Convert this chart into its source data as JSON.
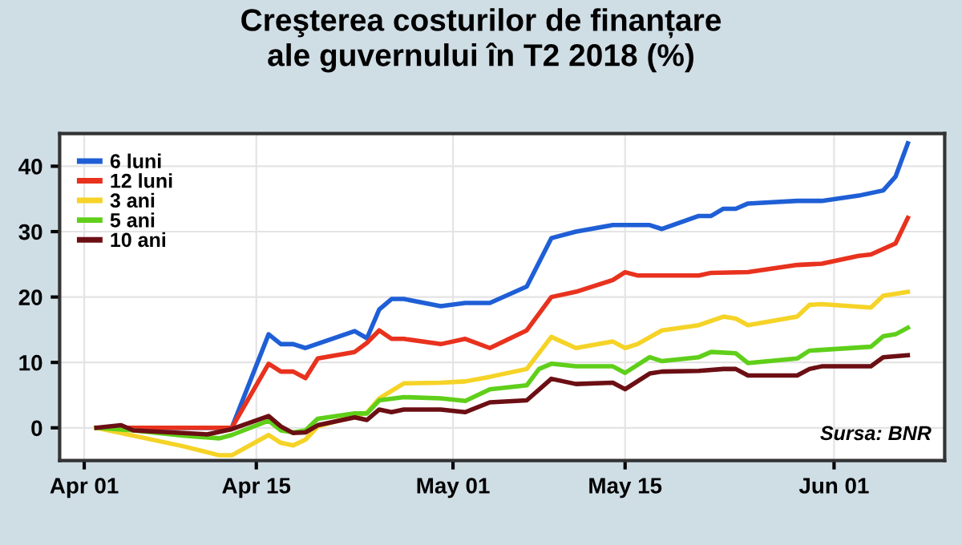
{
  "chart_data": {
    "type": "line",
    "title": "Creşterea costurilor de finanțare\nale guvernului în T2 2018 (%)",
    "xlim": [
      "2018-03-30",
      "2018-06-10"
    ],
    "xticks": [
      {
        "value": "2018-04-01",
        "label": "Apr 01"
      },
      {
        "value": "2018-04-15",
        "label": "Apr 15"
      },
      {
        "value": "2018-05-01",
        "label": "May 01"
      },
      {
        "value": "2018-05-15",
        "label": "May 15"
      },
      {
        "value": "2018-06-01",
        "label": "Jun 01"
      }
    ],
    "ylim": [
      -5,
      45
    ],
    "yticks": [
      0,
      10,
      20,
      30,
      40
    ],
    "grid": true,
    "legend": "top left",
    "line_style": "solid",
    "marker": "none",
    "annotations": [
      "Sursa: BNR"
    ],
    "series": [
      {
        "name": "6 luni",
        "color": "#1f5fd6",
        "x": [
          "2018-04-02",
          "2018-04-13",
          "2018-04-16",
          "2018-04-17",
          "2018-04-18",
          "2018-04-19",
          "2018-04-23",
          "2018-04-24",
          "2018-04-25",
          "2018-04-26",
          "2018-04-27",
          "2018-04-30",
          "2018-05-02",
          "2018-05-04",
          "2018-05-07",
          "2018-05-09",
          "2018-05-11",
          "2018-05-14",
          "2018-05-15",
          "2018-05-17",
          "2018-05-18",
          "2018-05-21",
          "2018-05-22",
          "2018-05-23",
          "2018-05-24",
          "2018-05-25",
          "2018-05-29",
          "2018-05-31",
          "2018-06-03",
          "2018-06-05",
          "2018-06-06",
          "2018-06-07"
        ],
        "values": [
          0,
          0,
          14.3,
          12.8,
          12.8,
          12.2,
          14.8,
          13.7,
          18.1,
          19.7,
          19.7,
          18.6,
          19.1,
          19.1,
          21.6,
          29,
          30,
          31,
          31,
          31,
          30.4,
          32.4,
          32.4,
          33.5,
          33.5,
          34.3,
          34.7,
          34.7,
          35.5,
          36.3,
          38.4,
          43.5
        ]
      },
      {
        "name": "12 luni",
        "color": "#e8321e",
        "x": [
          "2018-04-02",
          "2018-04-13",
          "2018-04-16",
          "2018-04-17",
          "2018-04-18",
          "2018-04-19",
          "2018-04-20",
          "2018-04-23",
          "2018-04-24",
          "2018-04-25",
          "2018-04-26",
          "2018-04-27",
          "2018-04-30",
          "2018-05-02",
          "2018-05-04",
          "2018-05-07",
          "2018-05-09",
          "2018-05-11",
          "2018-05-14",
          "2018-05-15",
          "2018-05-16",
          "2018-05-21",
          "2018-05-22",
          "2018-05-25",
          "2018-05-29",
          "2018-05-31",
          "2018-06-03",
          "2018-06-04",
          "2018-06-06",
          "2018-06-07"
        ],
        "values": [
          0,
          0,
          9.8,
          8.6,
          8.6,
          7.6,
          10.6,
          11.6,
          13,
          14.9,
          13.6,
          13.6,
          12.8,
          13.6,
          12.2,
          14.9,
          20,
          20.8,
          22.6,
          23.8,
          23.3,
          23.3,
          23.7,
          23.8,
          24.9,
          25.1,
          26.3,
          26.5,
          28.2,
          32.1
        ]
      },
      {
        "name": "3 ani",
        "color": "#f5d327",
        "x": [
          "2018-04-02",
          "2018-04-05",
          "2018-04-09",
          "2018-04-12",
          "2018-04-13",
          "2018-04-16",
          "2018-04-17",
          "2018-04-18",
          "2018-04-19",
          "2018-04-20",
          "2018-04-23",
          "2018-04-24",
          "2018-04-25",
          "2018-04-27",
          "2018-04-30",
          "2018-05-02",
          "2018-05-04",
          "2018-05-07",
          "2018-05-09",
          "2018-05-11",
          "2018-05-14",
          "2018-05-15",
          "2018-05-16",
          "2018-05-18",
          "2018-05-21",
          "2018-05-23",
          "2018-05-24",
          "2018-05-25",
          "2018-05-29",
          "2018-05-30",
          "2018-05-31",
          "2018-06-04",
          "2018-06-05",
          "2018-06-07"
        ],
        "values": [
          0,
          -1.2,
          -2.8,
          -4.2,
          -4.2,
          -1.1,
          -2.3,
          -2.7,
          -1.8,
          0.2,
          1.8,
          2.3,
          4.5,
          6.8,
          6.9,
          7.1,
          7.8,
          9,
          13.9,
          12.2,
          13.2,
          12.2,
          12.8,
          14.9,
          15.7,
          17,
          16.7,
          15.7,
          17,
          18.8,
          18.9,
          18.4,
          20.2,
          20.8
        ]
      },
      {
        "name": "5 ani",
        "color": "#5fcf1a",
        "x": [
          "2018-04-02",
          "2018-04-05",
          "2018-04-09",
          "2018-04-12",
          "2018-04-13",
          "2018-04-16",
          "2018-04-17",
          "2018-04-18",
          "2018-04-19",
          "2018-04-20",
          "2018-04-23",
          "2018-04-24",
          "2018-04-25",
          "2018-04-27",
          "2018-04-30",
          "2018-05-02",
          "2018-05-04",
          "2018-05-07",
          "2018-05-08",
          "2018-05-09",
          "2018-05-11",
          "2018-05-14",
          "2018-05-15",
          "2018-05-17",
          "2018-05-18",
          "2018-05-21",
          "2018-05-22",
          "2018-05-24",
          "2018-05-25",
          "2018-05-29",
          "2018-05-30",
          "2018-06-04",
          "2018-06-05",
          "2018-06-06",
          "2018-06-07"
        ],
        "values": [
          0,
          -0.4,
          -1.2,
          -1.6,
          -1.1,
          1.1,
          -0.4,
          -0.7,
          -0.4,
          1.4,
          2.2,
          2.2,
          4.2,
          4.7,
          4.5,
          4.1,
          5.9,
          6.5,
          9,
          9.8,
          9.4,
          9.4,
          8.4,
          10.8,
          10.2,
          10.8,
          11.6,
          11.4,
          9.9,
          10.6,
          11.8,
          12.4,
          14,
          14.3,
          15.3
        ]
      },
      {
        "name": "10 ani",
        "color": "#6b0f14",
        "x": [
          "2018-04-02",
          "2018-04-04",
          "2018-04-05",
          "2018-04-09",
          "2018-04-11",
          "2018-04-13",
          "2018-04-16",
          "2018-04-17",
          "2018-04-18",
          "2018-04-19",
          "2018-04-20",
          "2018-04-23",
          "2018-04-24",
          "2018-04-25",
          "2018-04-26",
          "2018-04-27",
          "2018-04-30",
          "2018-05-02",
          "2018-05-04",
          "2018-05-07",
          "2018-05-09",
          "2018-05-11",
          "2018-05-14",
          "2018-05-15",
          "2018-05-17",
          "2018-05-18",
          "2018-05-21",
          "2018-05-23",
          "2018-05-24",
          "2018-05-25",
          "2018-05-29",
          "2018-05-30",
          "2018-05-31",
          "2018-06-04",
          "2018-06-05",
          "2018-06-07"
        ],
        "values": [
          0,
          0.4,
          -0.4,
          -0.8,
          -1,
          -0.2,
          1.8,
          0.2,
          -0.8,
          -0.7,
          0.4,
          1.6,
          1.2,
          2.8,
          2.4,
          2.8,
          2.8,
          2.4,
          3.9,
          4.2,
          7.5,
          6.7,
          6.9,
          5.9,
          8.3,
          8.6,
          8.7,
          9,
          9,
          8,
          8,
          9,
          9.4,
          9.4,
          10.8,
          11.1
        ]
      }
    ]
  }
}
